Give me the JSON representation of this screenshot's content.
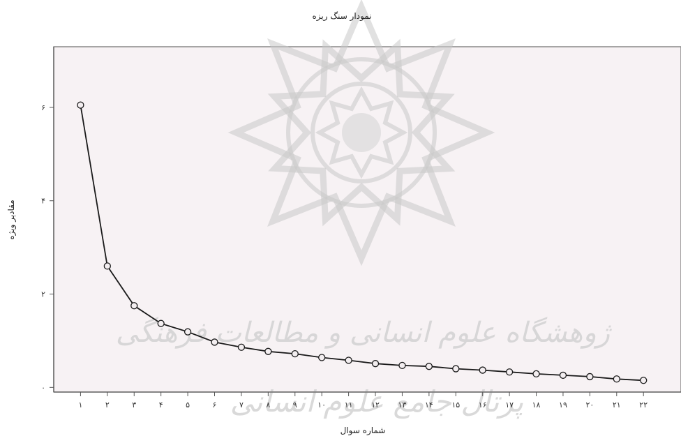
{
  "chart_data": {
    "type": "line",
    "title": "نمودار سنگ ریزه",
    "xlabel": "شماره سوال",
    "ylabel": "مقادیر ویژه",
    "x_tick_labels": [
      "۱",
      "۲",
      "۳",
      "۴",
      "۵",
      "۶",
      "۷",
      "۸",
      "۹",
      "۱۰",
      "۱۱",
      "۱۲",
      "۱۳",
      "۱۴",
      "۱۵",
      "۱۶",
      "۱۷",
      "۱۸",
      "۱۹",
      "۲۰",
      "۲۱",
      "۲۲"
    ],
    "y_ticks": [
      {
        "value": 0,
        "label": "۰"
      },
      {
        "value": 2,
        "label": "۲"
      },
      {
        "value": 4,
        "label": "۴"
      },
      {
        "value": 6,
        "label": "۶"
      }
    ],
    "x": [
      1,
      2,
      3,
      4,
      5,
      6,
      7,
      8,
      9,
      10,
      11,
      12,
      13,
      14,
      15,
      16,
      17,
      18,
      19,
      20,
      21,
      22
    ],
    "values": [
      6.05,
      2.6,
      1.75,
      1.37,
      1.19,
      0.97,
      0.86,
      0.77,
      0.72,
      0.64,
      0.58,
      0.51,
      0.47,
      0.45,
      0.4,
      0.37,
      0.33,
      0.29,
      0.26,
      0.23,
      0.18,
      0.15
    ],
    "ylim": [
      -0.1,
      7.3
    ],
    "xlim": [
      0,
      23.4
    ],
    "grid": false,
    "plot_background": "#f7f2f4",
    "line_color": "#1a1a1a",
    "marker": "circle"
  },
  "watermark": {
    "line1": "ژوهشگاه علوم انسانی و مطالعات فرهنگی",
    "line2": "پرتال جامع علوم انسانی"
  }
}
